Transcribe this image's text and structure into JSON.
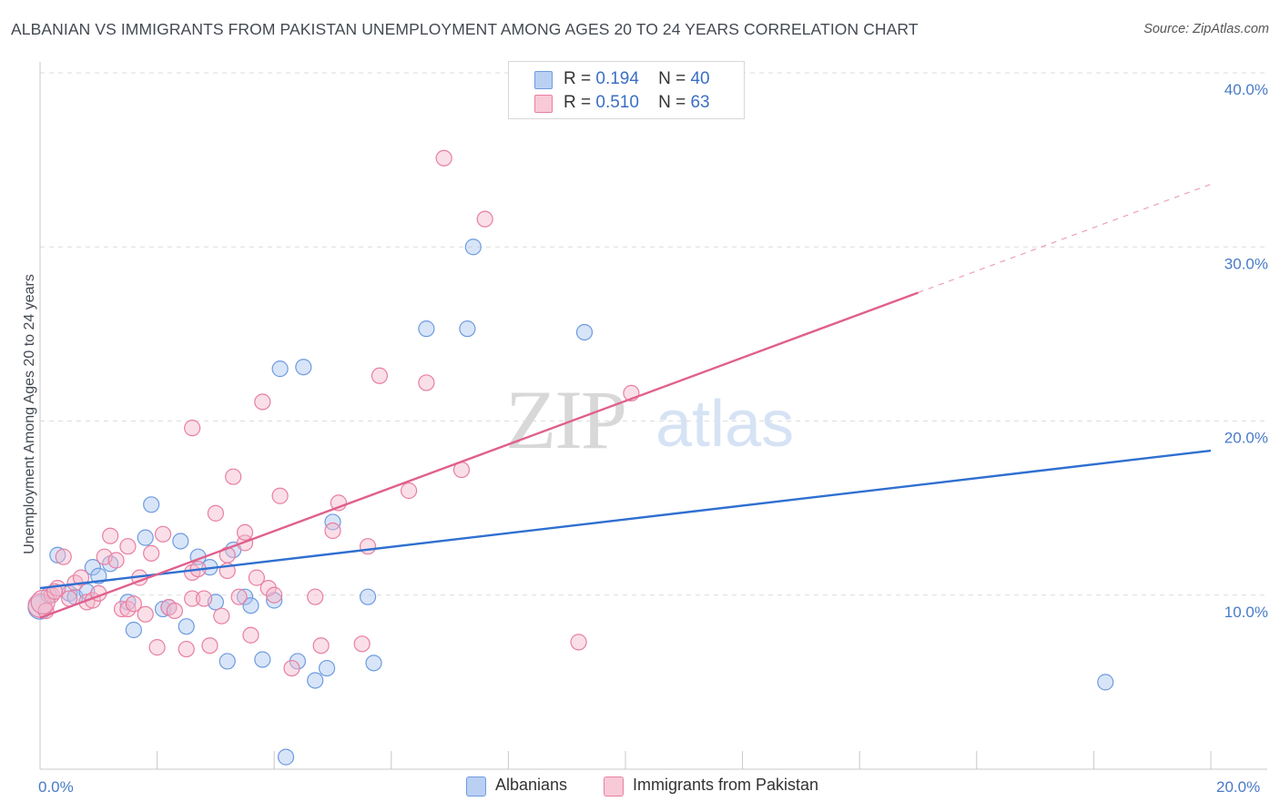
{
  "chart_data": {
    "type": "scatter",
    "title": "ALBANIAN VS IMMIGRANTS FROM PAKISTAN UNEMPLOYMENT AMONG AGES 20 TO 24 YEARS CORRELATION CHART",
    "source": "Source: ZipAtlas.com",
    "ylabel": "Unemployment Among Ages 20 to 24 years",
    "xlim": [
      0,
      20
    ],
    "ylim": [
      0,
      40
    ],
    "x_tick_labels": {
      "min": "0.0%",
      "max": "20.0%"
    },
    "y_ticks": [
      10,
      20,
      30,
      40
    ],
    "y_tick_labels": [
      "10.0%",
      "20.0%",
      "30.0%",
      "40.0%"
    ],
    "watermark": {
      "zip": "ZIP",
      "atlas": "atlas"
    },
    "legend": [
      {
        "r_label": "R =",
        "r": "0.194",
        "n_label": "N =",
        "n": "40"
      },
      {
        "r_label": "R =",
        "r": "0.510",
        "n_label": "N =",
        "n": "63"
      }
    ],
    "series": [
      {
        "name": "Albanians",
        "color": "#6e9be0",
        "fill": "#a9c6f0",
        "trend": {
          "x0": 0,
          "y0": 10.4,
          "x1": 20,
          "y1": 18.3,
          "dashed_from": null
        },
        "points": [
          [
            0.0,
            9.3
          ],
          [
            0.3,
            12.3
          ],
          [
            0.5,
            10.1
          ],
          [
            0.6,
            9.9
          ],
          [
            0.8,
            10.2
          ],
          [
            0.9,
            11.6
          ],
          [
            1.0,
            11.1
          ],
          [
            1.2,
            11.8
          ],
          [
            1.5,
            9.6
          ],
          [
            1.6,
            8.0
          ],
          [
            1.8,
            13.3
          ],
          [
            1.9,
            15.2
          ],
          [
            2.1,
            9.2
          ],
          [
            2.2,
            9.3
          ],
          [
            2.4,
            13.1
          ],
          [
            2.5,
            8.2
          ],
          [
            2.7,
            12.2
          ],
          [
            2.9,
            11.6
          ],
          [
            3.0,
            9.6
          ],
          [
            3.2,
            6.2
          ],
          [
            3.3,
            12.6
          ],
          [
            3.5,
            9.9
          ],
          [
            3.6,
            9.4
          ],
          [
            3.8,
            6.3
          ],
          [
            4.0,
            9.7
          ],
          [
            4.1,
            23.0
          ],
          [
            4.2,
            0.7
          ],
          [
            4.4,
            6.2
          ],
          [
            4.5,
            23.1
          ],
          [
            4.7,
            5.1
          ],
          [
            4.9,
            5.8
          ],
          [
            5.0,
            14.2
          ],
          [
            5.6,
            9.9
          ],
          [
            5.7,
            6.1
          ],
          [
            6.6,
            25.3
          ],
          [
            7.3,
            25.3
          ],
          [
            7.4,
            30.0
          ],
          [
            9.3,
            25.1
          ],
          [
            18.2,
            5.0
          ],
          [
            0.15,
            10.0
          ]
        ]
      },
      {
        "name": "Immigrants from Pakistan",
        "color": "#e87fa1",
        "fill": "#f5b8cb",
        "trend": {
          "x0": 0,
          "y0": 8.7,
          "x1": 20,
          "y1": 33.6,
          "dashed_from": 15
        },
        "points": [
          [
            0.0,
            9.4
          ],
          [
            0.2,
            10.0
          ],
          [
            0.3,
            10.4
          ],
          [
            0.4,
            12.2
          ],
          [
            0.5,
            9.8
          ],
          [
            0.6,
            10.7
          ],
          [
            0.7,
            11.0
          ],
          [
            0.8,
            9.6
          ],
          [
            0.9,
            9.7
          ],
          [
            1.0,
            10.1
          ],
          [
            1.1,
            12.2
          ],
          [
            1.2,
            13.4
          ],
          [
            1.3,
            12.0
          ],
          [
            1.4,
            9.2
          ],
          [
            1.5,
            9.2
          ],
          [
            1.5,
            12.8
          ],
          [
            1.6,
            9.5
          ],
          [
            1.7,
            11.0
          ],
          [
            1.8,
            8.9
          ],
          [
            1.9,
            12.4
          ],
          [
            2.0,
            7.0
          ],
          [
            2.1,
            13.5
          ],
          [
            2.2,
            9.3
          ],
          [
            2.3,
            9.1
          ],
          [
            2.5,
            6.9
          ],
          [
            2.6,
            11.3
          ],
          [
            2.6,
            9.8
          ],
          [
            2.6,
            19.6
          ],
          [
            2.7,
            11.5
          ],
          [
            2.8,
            9.8
          ],
          [
            2.9,
            7.1
          ],
          [
            3.0,
            14.7
          ],
          [
            3.1,
            8.8
          ],
          [
            3.2,
            11.4
          ],
          [
            3.2,
            12.3
          ],
          [
            3.3,
            16.8
          ],
          [
            3.4,
            9.9
          ],
          [
            3.5,
            13.0
          ],
          [
            3.5,
            13.6
          ],
          [
            3.6,
            7.7
          ],
          [
            3.7,
            11.0
          ],
          [
            3.8,
            21.1
          ],
          [
            3.9,
            10.4
          ],
          [
            4.0,
            10.0
          ],
          [
            4.1,
            15.7
          ],
          [
            4.3,
            5.8
          ],
          [
            4.7,
            9.9
          ],
          [
            4.8,
            7.1
          ],
          [
            5.0,
            13.7
          ],
          [
            5.1,
            15.3
          ],
          [
            5.5,
            7.2
          ],
          [
            5.6,
            12.8
          ],
          [
            5.8,
            22.6
          ],
          [
            6.3,
            16.0
          ],
          [
            6.6,
            22.2
          ],
          [
            6.9,
            35.1
          ],
          [
            7.2,
            17.2
          ],
          [
            7.6,
            31.6
          ],
          [
            9.2,
            7.3
          ],
          [
            10.1,
            21.6
          ],
          [
            0.1,
            9.1
          ],
          [
            0.05,
            9.6
          ],
          [
            0.25,
            10.2
          ]
        ]
      }
    ]
  },
  "bottom_legend": [
    "Albanians",
    "Immigrants from Pakistan"
  ]
}
